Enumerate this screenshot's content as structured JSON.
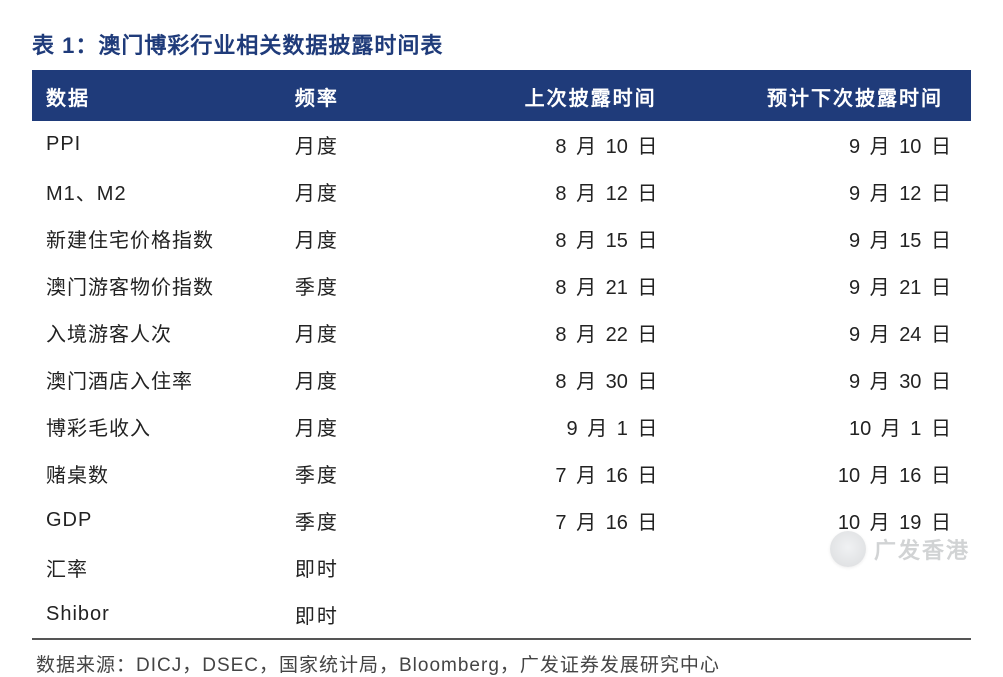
{
  "title": "表 1：澳门博彩行业相关数据披露时间表",
  "colors": {
    "accent": "#1f3b7a",
    "header_text": "#ffffff",
    "body_text": "#222222",
    "source_text": "#444444",
    "border_bottom": "#555555",
    "background": "#ffffff"
  },
  "typography": {
    "title_fontsize": 22,
    "header_fontsize": 20,
    "cell_fontsize": 20,
    "source_fontsize": 19,
    "title_weight": "bold",
    "header_weight": "bold"
  },
  "table": {
    "columns": [
      "数据",
      "频率",
      "上次披露时间",
      "预计下次披露时间"
    ],
    "column_widths_pct": [
      28,
      18,
      27,
      27
    ],
    "column_align": [
      "left",
      "left",
      "right",
      "right"
    ],
    "rows": [
      {
        "data": "PPI",
        "freq": "月度",
        "last": "8 月 10 日",
        "next": "9 月 10 日"
      },
      {
        "data": "M1、M2",
        "freq": "月度",
        "last": "8 月 12 日",
        "next": "9 月 12 日"
      },
      {
        "data": "新建住宅价格指数",
        "freq": "月度",
        "last": "8 月 15 日",
        "next": "9 月 15 日"
      },
      {
        "data": "澳门游客物价指数",
        "freq": "季度",
        "last": "8 月 21 日",
        "next": "9 月 21 日"
      },
      {
        "data": "入境游客人次",
        "freq": "月度",
        "last": "8 月 22 日",
        "next": "9 月 24 日"
      },
      {
        "data": "澳门酒店入住率",
        "freq": "月度",
        "last": "8 月 30 日",
        "next": "9 月 30 日"
      },
      {
        "data": "博彩毛收入",
        "freq": "月度",
        "last": "9 月 1 日",
        "next": "10 月 1 日"
      },
      {
        "data": "赌桌数",
        "freq": "季度",
        "last": "7 月 16 日",
        "next": "10 月 16 日"
      },
      {
        "data": "GDP",
        "freq": "季度",
        "last": "7 月 16 日",
        "next": "10 月 19 日"
      },
      {
        "data": "汇率",
        "freq": "即时",
        "last": "",
        "next": ""
      },
      {
        "data": "Shibor",
        "freq": "即时",
        "last": "",
        "next": ""
      }
    ]
  },
  "source": "数据来源：DICJ，DSEC，国家统计局，Bloomberg，广发证券发展研究中心",
  "watermark": {
    "text": "广发香港"
  }
}
